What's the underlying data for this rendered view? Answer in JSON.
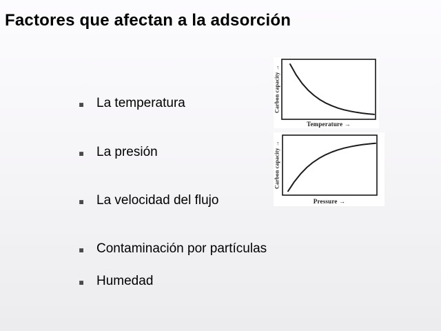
{
  "slide_title": "Factores que afectan a la adsorción",
  "bullets": [
    "La temperatura",
    "La presión",
    "La velocidad del flujo",
    "Contaminación por partículas",
    "Humedad"
  ],
  "figures": [
    {
      "ylabel": "Carbon capacity →",
      "xlabel": "Temperature →"
    },
    {
      "ylabel": "Carbon capacity →",
      "xlabel": "Pressure →"
    }
  ],
  "colors": {
    "background_top": "#fcfbfe",
    "background_bottom": "#ececee",
    "text": "#000000",
    "bullet_marker": "#4a4a4a",
    "figure_background": "#ffffff",
    "curve": "#1a1a1a"
  },
  "chart_data": [
    {
      "type": "line",
      "title": "",
      "xlabel": "Temperature →",
      "ylabel": "Carbon capacity →",
      "axis_numbers_shown": false,
      "description": "Carbon adsorption capacity decreases exponentially as temperature increases",
      "x_normalized": [
        0,
        0.071,
        0.143,
        0.214,
        0.286,
        0.357,
        0.429,
        0.5,
        0.571,
        0.643,
        0.714,
        0.786,
        0.857,
        0.929,
        1
      ],
      "y_normalized": [
        1,
        0.796,
        0.633,
        0.504,
        0.401,
        0.319,
        0.254,
        0.202,
        0.161,
        0.128,
        0.102,
        0.081,
        0.064,
        0.051,
        0.041
      ]
    },
    {
      "type": "line",
      "title": "",
      "xlabel": "Pressure →",
      "ylabel": "Carbon capacity →",
      "axis_numbers_shown": false,
      "description": "Carbon adsorption capacity rises with pressure and saturates",
      "x_normalized": [
        0,
        0.071,
        0.143,
        0.214,
        0.286,
        0.357,
        0.429,
        0.5,
        0.571,
        0.643,
        0.714,
        0.786,
        0.857,
        0.929,
        1
      ],
      "y_normalized": [
        0.01,
        0.193,
        0.349,
        0.474,
        0.576,
        0.657,
        0.724,
        0.777,
        0.82,
        0.855,
        0.883,
        0.905,
        0.924,
        0.938,
        0.95
      ]
    }
  ]
}
